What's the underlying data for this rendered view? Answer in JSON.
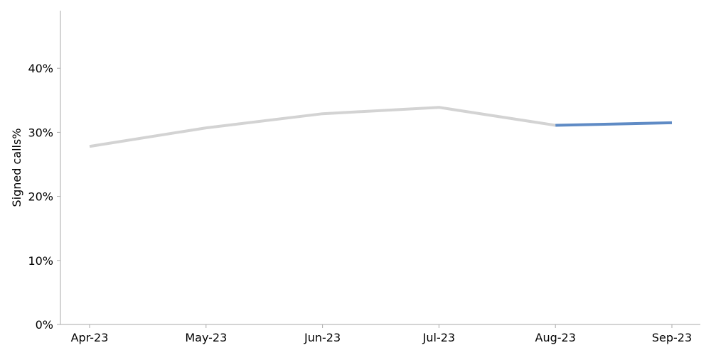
{
  "chart_data": {
    "type": "line",
    "title": "",
    "xlabel": "",
    "ylabel": "Signed calls%",
    "categories": [
      "Apr-23",
      "May-23",
      "Jun-23",
      "Jul-23",
      "Aug-23",
      "Sep-23"
    ],
    "ylim": [
      0,
      0.49
    ],
    "yticks": [
      0,
      0.1,
      0.2,
      0.3,
      0.4
    ],
    "ytick_labels": [
      "0%",
      "10%",
      "20%",
      "30%",
      "40%"
    ],
    "grid": false,
    "legend": "none",
    "series": [
      {
        "values": [
          0.278,
          0.307,
          0.329,
          0.339,
          0.311,
          null
        ],
        "color": "#d3d3d3"
      },
      {
        "values": [
          null,
          null,
          null,
          null,
          0.311,
          0.315
        ],
        "color": "#5f8bc5"
      }
    ],
    "axis_color": "#aaaaaa"
  }
}
